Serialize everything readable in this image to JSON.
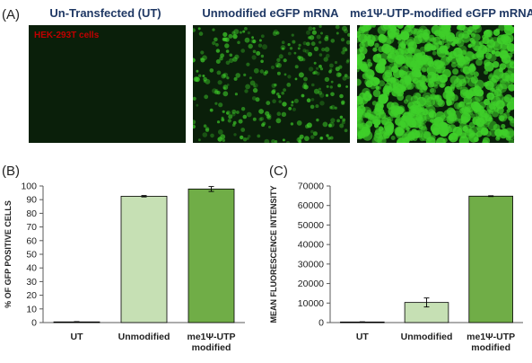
{
  "figure": {
    "panel_a_label": "(A)",
    "panel_b_label": "(B)",
    "panel_c_label": "(C)",
    "images": [
      {
        "title": "Un-Transfected (UT)",
        "overlay_label": "HEK-293T cells",
        "green_density": 0.0
      },
      {
        "title": "Unmodified eGFP mRNA",
        "overlay_label": "",
        "green_density": 0.35
      },
      {
        "title": "me1Ψ-UTP-modified eGFP mRNA",
        "overlay_label": "",
        "green_density": 0.9
      }
    ]
  },
  "colors": {
    "light_green": "#c6e0b4",
    "dark_green": "#70ad47",
    "micro_dark": "#0a1f0a",
    "fluor": "#3fcf2a",
    "axis": "#595959",
    "title_blue": "#1f3864"
  },
  "chart_data": [
    {
      "type": "bar",
      "categories": [
        "UT",
        "Unmodified",
        "me1Ψ-UTP modified"
      ],
      "values": [
        0.5,
        92.5,
        97.8
      ],
      "errors": [
        0.2,
        0.5,
        1.8
      ],
      "xlabel": "",
      "ylabel": "% OF GFP POSITIVE CELLS",
      "ylim": [
        0,
        100
      ],
      "yticks": [
        "0",
        "10",
        "20",
        "30",
        "40",
        "50",
        "60",
        "70",
        "80",
        "90",
        "100"
      ],
      "bar_colors": [
        "#c6e0b4",
        "#c6e0b4",
        "#70ad47"
      ]
    },
    {
      "type": "bar",
      "categories": [
        "UT",
        "Unmodified",
        "me1Ψ-UTP modified"
      ],
      "values": [
        300,
        10300,
        64800
      ],
      "errors": [
        100,
        2300,
        200
      ],
      "xlabel": "",
      "ylabel": "MEAN FLUORESCENCE INTENSITY",
      "ylim": [
        0,
        70000
      ],
      "yticks": [
        "0",
        "10000",
        "20000",
        "30000",
        "40000",
        "50000",
        "60000",
        "70000"
      ],
      "bar_colors": [
        "#c6e0b4",
        "#c6e0b4",
        "#70ad47"
      ]
    }
  ]
}
